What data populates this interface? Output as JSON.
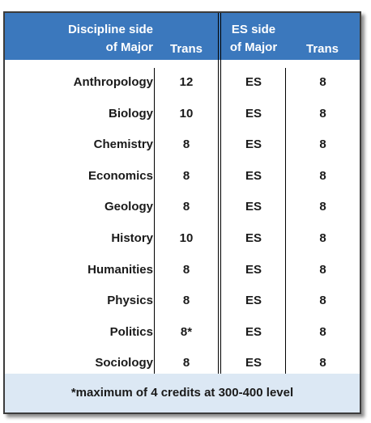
{
  "header": {
    "discipline_line1": "Discipline side",
    "discipline_line2": "of Major",
    "trans1": "Trans",
    "es_line1": "ES side",
    "es_line2": "of Major",
    "trans2": "Trans"
  },
  "rows": [
    {
      "discipline": "Anthropology",
      "trans": "12",
      "es": "ES",
      "es_trans": "8"
    },
    {
      "discipline": "Biology",
      "trans": "10",
      "es": "ES",
      "es_trans": "8"
    },
    {
      "discipline": "Chemistry",
      "trans": "8",
      "es": "ES",
      "es_trans": "8"
    },
    {
      "discipline": "Economics",
      "trans": "8",
      "es": "ES",
      "es_trans": "8"
    },
    {
      "discipline": "Geology",
      "trans": "8",
      "es": "ES",
      "es_trans": "8"
    },
    {
      "discipline": "History",
      "trans": "10",
      "es": "ES",
      "es_trans": "8"
    },
    {
      "discipline": "Humanities",
      "trans": "8",
      "es": "ES",
      "es_trans": "8"
    },
    {
      "discipline": "Physics",
      "trans": "8",
      "es": "ES",
      "es_trans": "8"
    },
    {
      "discipline": "Politics",
      "trans": "8*",
      "es": "ES",
      "es_trans": "8"
    },
    {
      "discipline": "Sociology",
      "trans": "8",
      "es": "ES",
      "es_trans": "8"
    }
  ],
  "footer": {
    "note": "*maximum of 4 credits at 300-400 level"
  },
  "colors": {
    "header_bg": "#3b78bd",
    "footer_bg": "#dce8f4"
  }
}
